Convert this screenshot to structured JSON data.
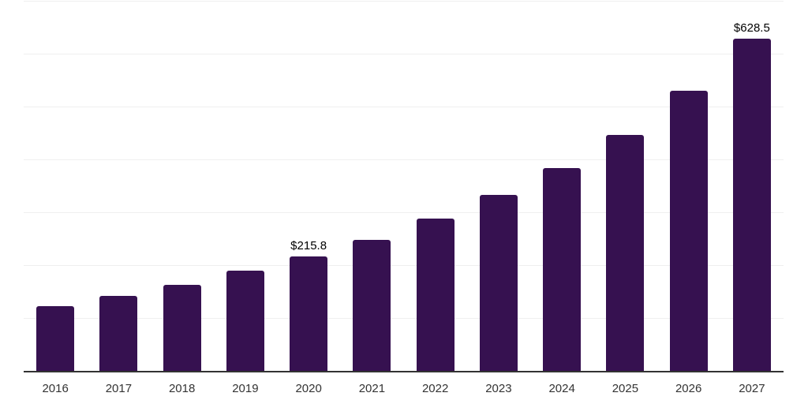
{
  "chart_data": {
    "type": "bar",
    "title": "",
    "xlabel": "",
    "ylabel": "",
    "categories": [
      "2016",
      "2017",
      "2018",
      "2019",
      "2020",
      "2021",
      "2022",
      "2023",
      "2024",
      "2025",
      "2026",
      "2027"
    ],
    "values": [
      122.4,
      141.8,
      162.7,
      189.6,
      215.8,
      247.8,
      288.1,
      332.9,
      383.7,
      446.4,
      530.0,
      628.5
    ],
    "bar_labels": [
      "",
      "",
      "",
      "",
      "$215.8",
      "",
      "",
      "",
      "",
      "",
      "",
      "$628.5"
    ],
    "ylim": [
      0,
      700
    ],
    "gridline_step": 100,
    "grid": "horizontal-only",
    "legend": "none",
    "y_axis_labels_visible": false,
    "colors": {
      "bar": "#361150",
      "gridline": "#efefef",
      "axis_line": "#333333",
      "tick_text": "#333333",
      "bar_label_text": "#000000",
      "background": "#ffffff"
    }
  }
}
